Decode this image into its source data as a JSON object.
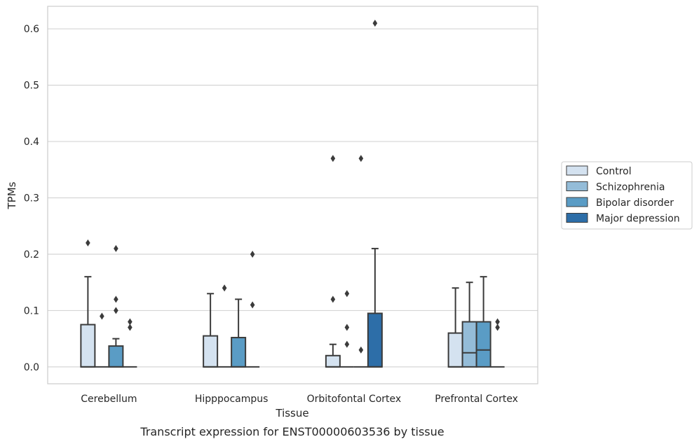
{
  "caption": "Transcript expression for ENST00000603536 by tissue",
  "chart_data": {
    "type": "box",
    "title": "",
    "xlabel": "Tissue",
    "ylabel": "TPMs",
    "ylim": [
      -0.03,
      0.64
    ],
    "yticks": [
      0.0,
      0.1,
      0.2,
      0.3,
      0.4,
      0.5,
      0.6
    ],
    "ytick_labels": [
      "0.0",
      "0.1",
      "0.2",
      "0.3",
      "0.4",
      "0.5",
      "0.6"
    ],
    "grid": "horizontal",
    "legend_position": "right",
    "categories": [
      "Cerebellum",
      "Hipppocampus",
      "Orbitofontal Cortex",
      "Prefrontal Cortex"
    ],
    "series": [
      {
        "name": "Control",
        "color": "#d4e2f0",
        "boxes": [
          {
            "q1": 0.0,
            "median": 0.0,
            "q3": 0.075,
            "whisker_low": 0.0,
            "whisker_high": 0.16,
            "outliers": [
              0.22
            ]
          },
          {
            "q1": 0.0,
            "median": 0.0,
            "q3": 0.055,
            "whisker_low": 0.0,
            "whisker_high": 0.13,
            "outliers": []
          },
          {
            "q1": 0.0,
            "median": 0.0,
            "q3": 0.02,
            "whisker_low": 0.0,
            "whisker_high": 0.04,
            "outliers": [
              0.12,
              0.37
            ]
          },
          {
            "q1": 0.0,
            "median": 0.0,
            "q3": 0.06,
            "whisker_low": 0.0,
            "whisker_high": 0.14,
            "outliers": []
          }
        ]
      },
      {
        "name": "Schizophrenia",
        "color": "#94bcd8",
        "boxes": [
          {
            "q1": 0.0,
            "median": 0.0,
            "q3": 0.0,
            "whisker_low": 0.0,
            "whisker_high": 0.0,
            "outliers": [
              0.09
            ]
          },
          {
            "q1": 0.0,
            "median": 0.0,
            "q3": 0.0,
            "whisker_low": 0.0,
            "whisker_high": 0.0,
            "outliers": [
              0.14
            ]
          },
          {
            "q1": 0.0,
            "median": 0.0,
            "q3": 0.0,
            "whisker_low": 0.0,
            "whisker_high": 0.0,
            "outliers": [
              0.04,
              0.07,
              0.13
            ]
          },
          {
            "q1": 0.0,
            "median": 0.025,
            "q3": 0.08,
            "whisker_low": 0.0,
            "whisker_high": 0.15,
            "outliers": []
          }
        ]
      },
      {
        "name": "Bipolar disorder",
        "color": "#5a9cc5",
        "boxes": [
          {
            "q1": 0.0,
            "median": 0.0,
            "q3": 0.037,
            "whisker_low": 0.0,
            "whisker_high": 0.05,
            "outliers": [
              0.1,
              0.12,
              0.21
            ]
          },
          {
            "q1": 0.0,
            "median": 0.0,
            "q3": 0.052,
            "whisker_low": 0.0,
            "whisker_high": 0.12,
            "outliers": []
          },
          {
            "q1": 0.0,
            "median": 0.0,
            "q3": 0.0,
            "whisker_low": 0.0,
            "whisker_high": 0.0,
            "outliers": [
              0.03,
              0.37
            ]
          },
          {
            "q1": 0.0,
            "median": 0.03,
            "q3": 0.08,
            "whisker_low": 0.0,
            "whisker_high": 0.16,
            "outliers": []
          }
        ]
      },
      {
        "name": "Major depression",
        "color": "#2d6ea8",
        "boxes": [
          {
            "q1": 0.0,
            "median": 0.0,
            "q3": 0.0,
            "whisker_low": 0.0,
            "whisker_high": 0.0,
            "outliers": [
              0.07,
              0.08
            ]
          },
          {
            "q1": 0.0,
            "median": 0.0,
            "q3": 0.0,
            "whisker_low": 0.0,
            "whisker_high": 0.0,
            "outliers": [
              0.11,
              0.2
            ]
          },
          {
            "q1": 0.0,
            "median": 0.0,
            "q3": 0.095,
            "whisker_low": 0.0,
            "whisker_high": 0.21,
            "outliers": [
              0.61
            ]
          },
          {
            "q1": 0.0,
            "median": 0.0,
            "q3": 0.0,
            "whisker_low": 0.0,
            "whisker_high": 0.0,
            "outliers": [
              0.07,
              0.08
            ]
          }
        ]
      }
    ]
  }
}
